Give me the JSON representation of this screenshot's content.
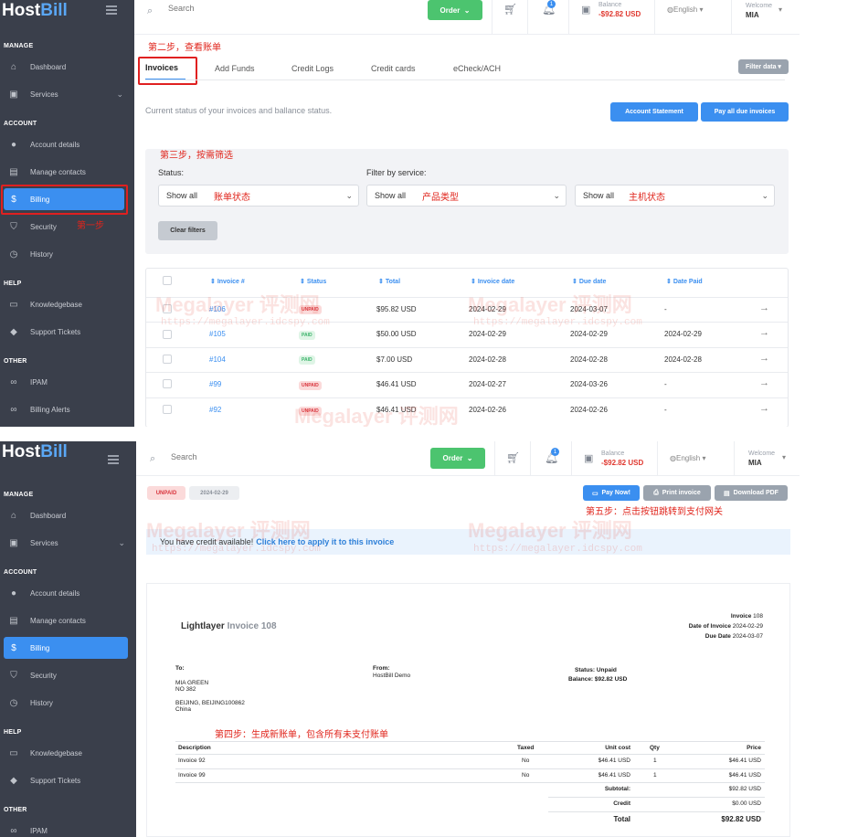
{
  "app": {
    "logo_host": "Host",
    "logo_bill": "Bill"
  },
  "sidebar": {
    "sections": {
      "manage": "MANAGE",
      "account": "ACCOUNT",
      "help": "HELP",
      "other": "OTHER"
    },
    "items": {
      "dashboard": "Dashboard",
      "services": "Services",
      "account_details": "Account details",
      "manage_contacts": "Manage contacts",
      "billing": "Billing",
      "security": "Security",
      "history": "History",
      "knowledgebase": "Knowledgebase",
      "support_tickets": "Support Tickets",
      "ipam": "IPAM",
      "billing_alerts": "Billing Alerts"
    }
  },
  "topbar": {
    "search_placeholder": "Search",
    "order_label": "Order",
    "notif_count": "1",
    "balance_label": "Balance",
    "balance_value": "-$92.82 USD",
    "language": "English",
    "welcome_label": "Welcome",
    "user": "MIA"
  },
  "annotations": {
    "step1": "第一步",
    "step2": "第二步，查看账单",
    "step3": "第三步，按需筛选",
    "status_note": "账单状态",
    "product_note": "产品类型",
    "host_note": "主机状态",
    "step4": "第四步：生成新账单，包含所有未支付账单",
    "step5": "第五步：点击按钮跳转到支付网关"
  },
  "tabs": [
    "Invoices",
    "Add Funds",
    "Credit Logs",
    "Credit cards",
    "eCheck/ACH"
  ],
  "filter_data_label": "Filter data",
  "status_text": "Current status of your invoices and ballance status.",
  "buttons": {
    "account_statement": "Account Statement",
    "pay_all": "Pay all due invoices",
    "clear_filters": "Clear filters"
  },
  "filters": {
    "status_label": "Status:",
    "service_label": "Filter by service:",
    "show_all": "Show all"
  },
  "table": {
    "headers": [
      "Invoice #",
      "Status",
      "Total",
      "Invoice date",
      "Due date",
      "Date Paid"
    ],
    "rows": [
      {
        "id": "#106",
        "status": "UNPAID",
        "total": "$95.82 USD",
        "date": "2024-02-29",
        "due": "2024-03-07",
        "paid": "-"
      },
      {
        "id": "#105",
        "status": "PAID",
        "total": "$50.00 USD",
        "date": "2024-02-29",
        "due": "2024-02-29",
        "paid": "2024-02-29"
      },
      {
        "id": "#104",
        "status": "PAID",
        "total": "$7.00 USD",
        "date": "2024-02-28",
        "due": "2024-02-28",
        "paid": "2024-02-28"
      },
      {
        "id": "#99",
        "status": "UNPAID",
        "total": "$46.41 USD",
        "date": "2024-02-27",
        "due": "2024-03-26",
        "paid": "-"
      },
      {
        "id": "#92",
        "status": "UNPAID",
        "total": "$46.41 USD",
        "date": "2024-02-26",
        "due": "2024-02-26",
        "paid": "-"
      }
    ]
  },
  "watermark": {
    "text": "Megalayer 评测网",
    "url": "https://megalayer.idcspy.com"
  },
  "invoice_view": {
    "status": "UNPAID",
    "date": "2024-02-29",
    "pay_now": "Pay Now!",
    "print": "Print invoice",
    "download": "Download PDF",
    "credit_text": "You have credit available!",
    "credit_link": "Click here to apply it to this invoice",
    "company": "Lightlayer",
    "invoice_title": "Invoice 108",
    "meta": {
      "invoice_label": "Invoice",
      "invoice_no": "108",
      "date_label": "Date of Invoice",
      "date_value": "2024-02-29",
      "due_label": "Due Date",
      "due_value": "2024-03-07"
    },
    "to_label": "To:",
    "to_lines": [
      "MIA GREEN",
      "NO 382",
      "",
      "BEIJING, BEIJING100862",
      "China"
    ],
    "from_label": "From:",
    "from_value": "HostBill Demo",
    "status_line": "Status: Unpaid",
    "balance_line": "Balance: $92.82 USD",
    "columns": [
      "Description",
      "Taxed",
      "Unit cost",
      "Qty",
      "Price"
    ],
    "lines": [
      {
        "desc": "Invoice 92",
        "taxed": "No",
        "unit": "$46.41 USD",
        "qty": "1",
        "price": "$46.41 USD"
      },
      {
        "desc": "Invoice 99",
        "taxed": "No",
        "unit": "$46.41 USD",
        "qty": "1",
        "price": "$46.41 USD"
      }
    ],
    "subtotal_label": "Subtotal:",
    "subtotal": "$92.82 USD",
    "credit_label": "Credit",
    "credit": "$0.00 USD",
    "total_label": "Total",
    "total": "$92.82 USD"
  },
  "colors": {
    "sidebar": "#3a3f4b",
    "accent": "#3b8ff0",
    "order": "#4cc46f",
    "annotation": "#e0241b"
  }
}
